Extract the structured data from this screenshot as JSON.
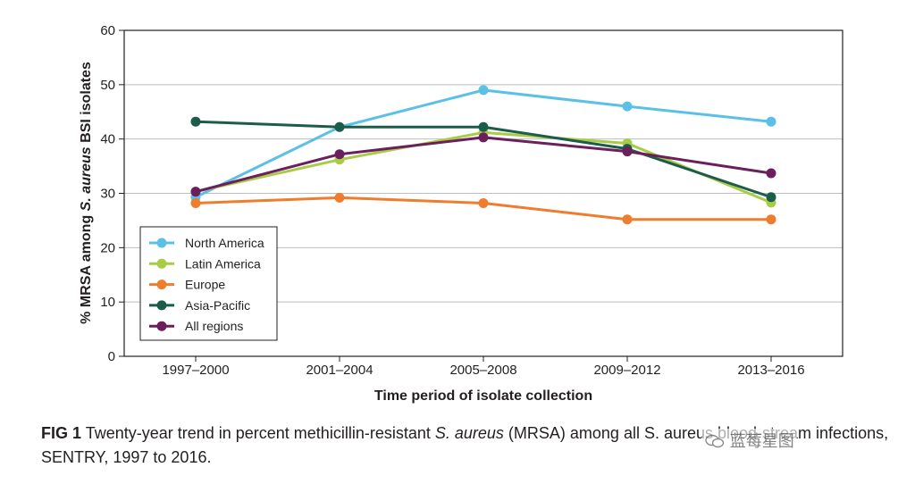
{
  "chart_data": {
    "type": "line",
    "title": "",
    "xlabel": "Time period of isolate collection",
    "ylabel_parts": [
      "% MRSA among ",
      "S. aureus",
      " BSI isolates"
    ],
    "categories": [
      "1997–2000",
      "2001–2004",
      "2005–2008",
      "2009–2012",
      "2013–2016"
    ],
    "ylim": [
      0,
      60
    ],
    "yticks": [
      0,
      10,
      20,
      30,
      40,
      50,
      60
    ],
    "grid": true,
    "legend_position": "bottom-left",
    "series": [
      {
        "name": "North America",
        "color": "#5bc0e8",
        "values": [
          29.3,
          42.2,
          49.0,
          46.0,
          43.2
        ]
      },
      {
        "name": "Latin America",
        "color": "#a8cc45",
        "values": [
          30.3,
          36.2,
          41.2,
          39.2,
          28.3
        ]
      },
      {
        "name": "Europe",
        "color": "#ee7d2e",
        "values": [
          28.2,
          29.2,
          28.2,
          25.2,
          25.2
        ]
      },
      {
        "name": "Asia-Pacific",
        "color": "#1b5c4a",
        "values": [
          43.2,
          42.2,
          42.2,
          38.2,
          29.3
        ]
      },
      {
        "name": "All regions",
        "color": "#6b1f5c",
        "values": [
          30.3,
          37.2,
          40.3,
          37.7,
          33.7
        ]
      }
    ]
  },
  "caption": {
    "label": "FIG 1",
    "text_before": " Twenty-year trend in percent methicillin-resistant ",
    "italic": "S. aureus",
    "text_after": " (MRSA) among all S. aureus blood-stream infections, SENTRY, 1997 to 2016."
  },
  "watermark": {
    "text": "蓝莓星图",
    "icon": "wechat-icon"
  }
}
